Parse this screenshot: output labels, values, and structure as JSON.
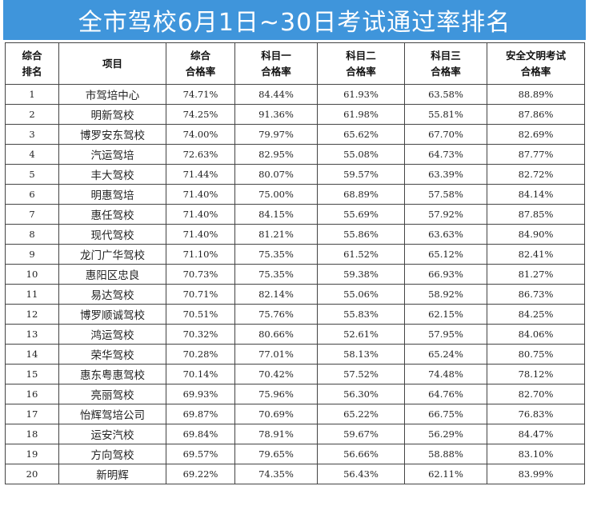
{
  "title": "全市驾校6月1日~30日考试通过率排名",
  "headers": [
    {
      "line1": "综合",
      "line2": "排名"
    },
    {
      "line1": "项目",
      "line2": ""
    },
    {
      "line1": "综合",
      "line2": "合格率"
    },
    {
      "line1": "科目一",
      "line2": "合格率"
    },
    {
      "line1": "科目二",
      "line2": "合格率"
    },
    {
      "line1": "科目三",
      "line2": "合格率"
    },
    {
      "line1": "安全文明考试",
      "line2": "合格率"
    }
  ],
  "rows": [
    {
      "rank": "1",
      "name": "市驾培中心",
      "overall": "74.71%",
      "subject1": "84.44%",
      "subject2": "61.93%",
      "subject3": "63.58%",
      "safety": "88.89%"
    },
    {
      "rank": "2",
      "name": "明新驾校",
      "overall": "74.25%",
      "subject1": "91.36%",
      "subject2": "61.98%",
      "subject3": "55.81%",
      "safety": "87.86%"
    },
    {
      "rank": "3",
      "name": "博罗安东驾校",
      "overall": "74.00%",
      "subject1": "79.97%",
      "subject2": "65.62%",
      "subject3": "67.70%",
      "safety": "82.69%"
    },
    {
      "rank": "4",
      "name": "汽运驾培",
      "overall": "72.63%",
      "subject1": "82.95%",
      "subject2": "55.08%",
      "subject3": "64.73%",
      "safety": "87.77%"
    },
    {
      "rank": "5",
      "name": "丰大驾校",
      "overall": "71.44%",
      "subject1": "80.07%",
      "subject2": "59.57%",
      "subject3": "63.39%",
      "safety": "82.72%"
    },
    {
      "rank": "6",
      "name": "明惠驾培",
      "overall": "71.40%",
      "subject1": "75.00%",
      "subject2": "68.89%",
      "subject3": "57.58%",
      "safety": "84.14%"
    },
    {
      "rank": "7",
      "name": "惠任驾校",
      "overall": "71.40%",
      "subject1": "84.15%",
      "subject2": "55.69%",
      "subject3": "57.92%",
      "safety": "87.85%"
    },
    {
      "rank": "8",
      "name": "现代驾校",
      "overall": "71.40%",
      "subject1": "81.21%",
      "subject2": "55.86%",
      "subject3": "63.63%",
      "safety": "84.90%"
    },
    {
      "rank": "9",
      "name": "龙门广华驾校",
      "overall": "71.10%",
      "subject1": "75.35%",
      "subject2": "61.52%",
      "subject3": "65.12%",
      "safety": "82.41%"
    },
    {
      "rank": "10",
      "name": "惠阳区忠良",
      "overall": "70.73%",
      "subject1": "75.35%",
      "subject2": "59.38%",
      "subject3": "66.93%",
      "safety": "81.27%"
    },
    {
      "rank": "11",
      "name": "易达驾校",
      "overall": "70.71%",
      "subject1": "82.14%",
      "subject2": "55.06%",
      "subject3": "58.92%",
      "safety": "86.73%"
    },
    {
      "rank": "12",
      "name": "博罗顺诚驾校",
      "overall": "70.51%",
      "subject1": "75.76%",
      "subject2": "55.83%",
      "subject3": "62.15%",
      "safety": "84.25%"
    },
    {
      "rank": "13",
      "name": "鸿运驾校",
      "overall": "70.32%",
      "subject1": "80.66%",
      "subject2": "52.61%",
      "subject3": "57.95%",
      "safety": "84.06%"
    },
    {
      "rank": "14",
      "name": "荣华驾校",
      "overall": "70.28%",
      "subject1": "77.01%",
      "subject2": "58.13%",
      "subject3": "65.24%",
      "safety": "80.75%"
    },
    {
      "rank": "15",
      "name": "惠东粤惠驾校",
      "overall": "70.14%",
      "subject1": "70.42%",
      "subject2": "57.52%",
      "subject3": "74.48%",
      "safety": "78.12%"
    },
    {
      "rank": "16",
      "name": "亮丽驾校",
      "overall": "69.93%",
      "subject1": "75.96%",
      "subject2": "56.30%",
      "subject3": "64.76%",
      "safety": "82.70%"
    },
    {
      "rank": "17",
      "name": "怡辉驾培公司",
      "overall": "69.87%",
      "subject1": "70.69%",
      "subject2": "65.22%",
      "subject3": "66.75%",
      "safety": "76.83%"
    },
    {
      "rank": "18",
      "name": "运安汽校",
      "overall": "69.84%",
      "subject1": "78.91%",
      "subject2": "59.67%",
      "subject3": "56.29%",
      "safety": "84.47%"
    },
    {
      "rank": "19",
      "name": "方向驾校",
      "overall": "69.57%",
      "subject1": "79.65%",
      "subject2": "56.66%",
      "subject3": "58.88%",
      "safety": "83.10%"
    },
    {
      "rank": "20",
      "name": "新明辉",
      "overall": "69.22%",
      "subject1": "74.35%",
      "subject2": "56.43%",
      "subject3": "62.11%",
      "safety": "83.99%"
    }
  ]
}
